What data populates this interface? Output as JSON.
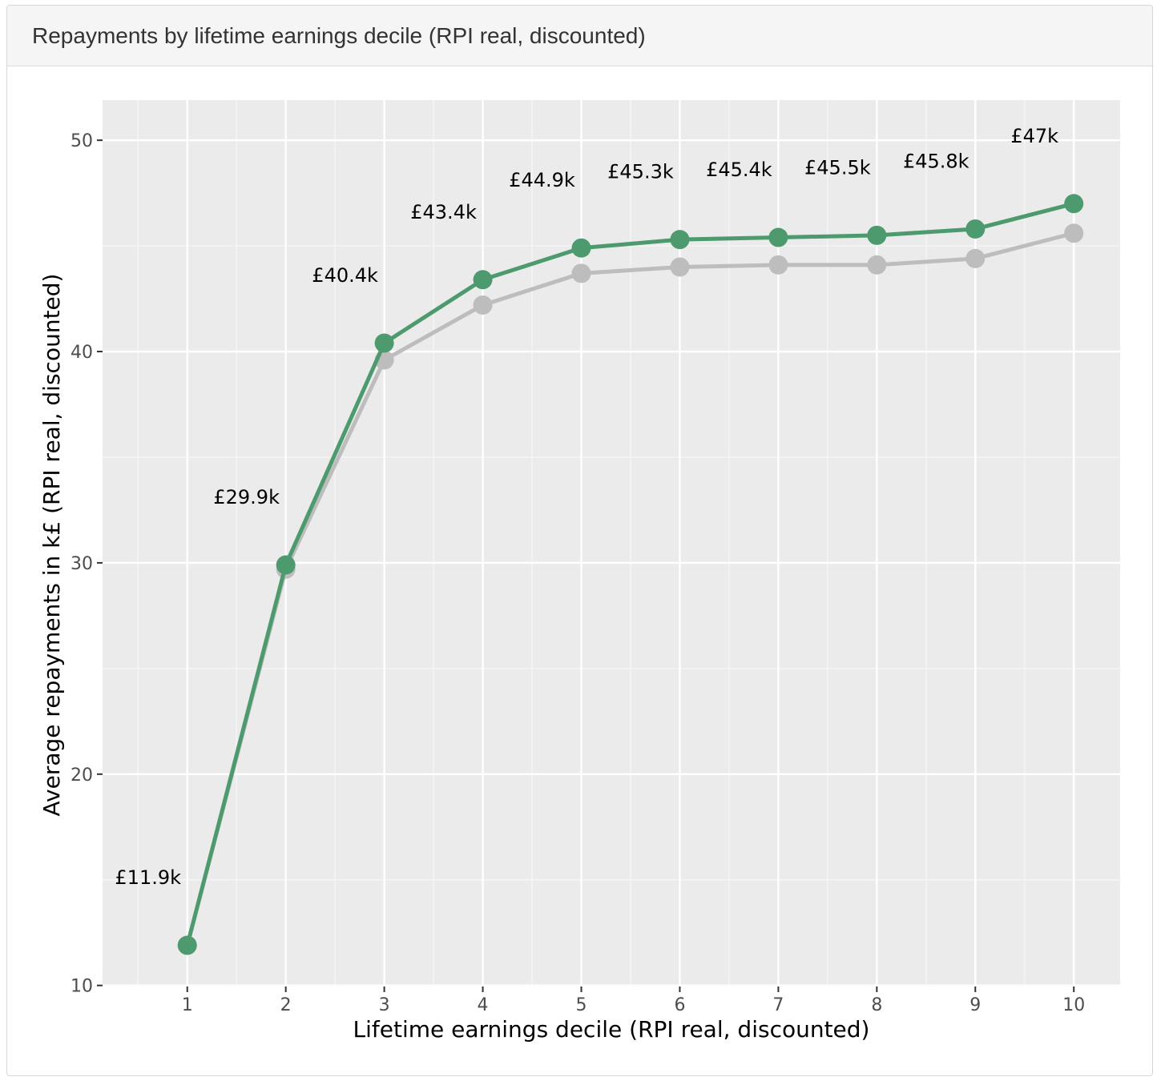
{
  "panel": {
    "title": "Repayments by lifetime earnings decile (RPI real, discounted)"
  },
  "chart_data": {
    "type": "line",
    "title": "",
    "xlabel": "Lifetime earnings decile (RPI real, discounted)",
    "ylabel": "Average repayments in k£ (RPI real, discounted)",
    "x": [
      1,
      2,
      3,
      4,
      5,
      6,
      7,
      8,
      9,
      10
    ],
    "xlim": [
      0.14,
      10.47
    ],
    "ylim": [
      9.95,
      51.9
    ],
    "yticks": [
      10,
      20,
      30,
      40,
      50
    ],
    "xticks": [
      1,
      2,
      3,
      4,
      5,
      6,
      7,
      8,
      9,
      10
    ],
    "grid": true,
    "legend": "none",
    "series": [
      {
        "color": "#bdbdbd",
        "values": [
          11.9,
          29.7,
          39.6,
          42.2,
          43.7,
          44.0,
          44.1,
          44.1,
          44.4,
          45.6
        ]
      },
      {
        "color": "#4e9a6f",
        "values": [
          11.9,
          29.9,
          40.4,
          43.4,
          44.9,
          45.3,
          45.4,
          45.5,
          45.8,
          47.0
        ]
      }
    ],
    "data_labels": [
      "£11.9k",
      "£29.9k",
      "£40.4k",
      "£43.4k",
      "£44.9k",
      "£45.3k",
      "£45.4k",
      "£45.5k",
      "£45.8k",
      "£47k"
    ]
  }
}
